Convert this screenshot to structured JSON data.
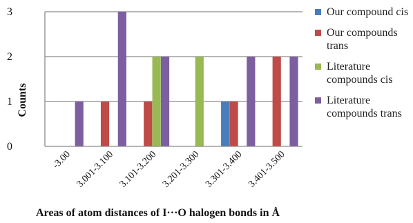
{
  "chart_data": {
    "type": "bar",
    "xlabel": "Areas of atom distances of I···O halogen bonds in Å",
    "ylabel": "Counts",
    "categories": [
      "-3.00",
      "3.001-3.100",
      "3.101-3.200",
      "3.201-3.300",
      "3.301-3.400",
      "3.401-3.500"
    ],
    "ylim": [
      0,
      3
    ],
    "yticks": [
      "0",
      "1",
      "2",
      "3"
    ],
    "grid": true,
    "legend_position": "right",
    "series": [
      {
        "name": "Our compound cis",
        "color": "#4a7ebb",
        "values": [
          0,
          0,
          0,
          0,
          1,
          0
        ]
      },
      {
        "name": "Our compounds trans",
        "color": "#be4b48",
        "values": [
          0,
          1,
          1,
          0,
          1,
          2
        ]
      },
      {
        "name": "Literature compounds cis",
        "color": "#98b954",
        "values": [
          0,
          0,
          2,
          2,
          0,
          0
        ]
      },
      {
        "name": "Literature compounds trans",
        "color": "#7d5fa0",
        "values": [
          1,
          3,
          2,
          0,
          2,
          2
        ]
      }
    ]
  }
}
